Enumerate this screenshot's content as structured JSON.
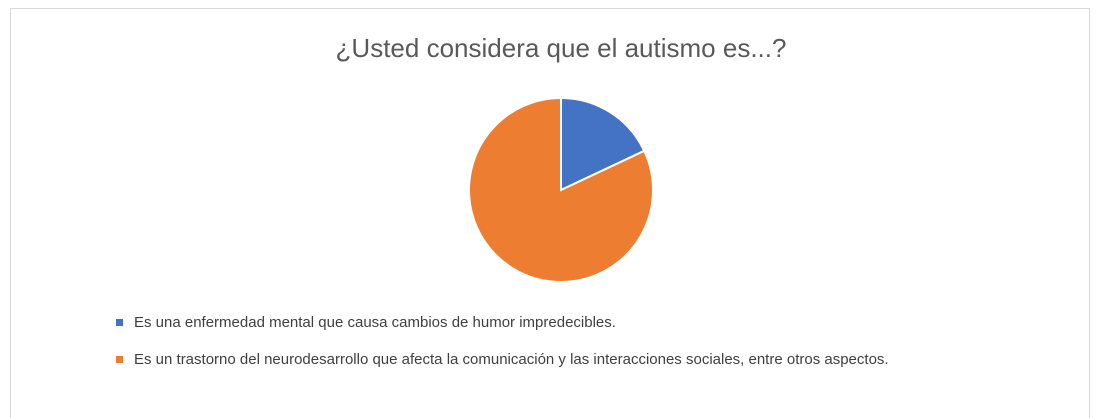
{
  "chart_data": {
    "type": "pie",
    "title": "¿Usted considera que el autismo es...?",
    "categories": [
      "Es una enfermedad mental que causa cambios de humor impredecibles.",
      "Es un trastorno del neurodesarrollo que afecta la comunicación y las interacciones sociales, entre otros aspectos."
    ],
    "values": [
      18,
      82
    ],
    "colors": [
      "#4472c4",
      "#ed7d31"
    ]
  }
}
